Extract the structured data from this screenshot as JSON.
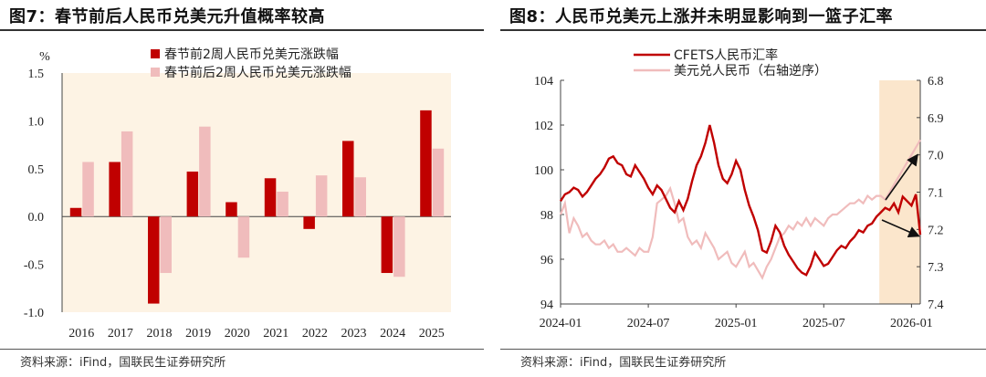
{
  "left": {
    "title": "图7：春节前后人民币兑美元升值概率较高",
    "source": "资料来源：iFind，国联民生证券研究所",
    "chart_data": {
      "type": "bar",
      "unit_label": "%",
      "categories": [
        "2016",
        "2017",
        "2018",
        "2019",
        "2020",
        "2021",
        "2022",
        "2023",
        "2024",
        "2025"
      ],
      "series": [
        {
          "name": "春节前2周人民币兑美元涨跌幅",
          "color": "#c00000",
          "values": [
            0.09,
            0.57,
            -0.91,
            0.47,
            0.15,
            0.4,
            -0.13,
            0.79,
            -0.59,
            1.11
          ]
        },
        {
          "name": "春节前后2周人民币兑美元涨跌幅",
          "color": "#f0bcbc",
          "values": [
            0.57,
            0.89,
            -0.59,
            0.94,
            -0.43,
            0.26,
            0.43,
            0.41,
            -0.63,
            0.71
          ]
        }
      ],
      "ylim": [
        -1.0,
        1.5
      ],
      "yticks": [
        "1.5",
        "1.0",
        "0.5",
        "0.0",
        "-0.5",
        "-1.0"
      ],
      "background": "#fdf3e4"
    }
  },
  "right": {
    "title": "图8：人民币兑美元上涨并未明显影响到一篮子汇率",
    "source": "资料来源：iFind，国联民生证券研究所",
    "chart_data": {
      "type": "line",
      "series": [
        {
          "name": "CFETS人民币汇率",
          "axis": "left",
          "color": "#c00000",
          "x": [
            0,
            0.3,
            0.6,
            0.9,
            1.2,
            1.5,
            1.8,
            2.1,
            2.4,
            2.7,
            3.0,
            3.3,
            3.6,
            3.9,
            4.2,
            4.5,
            4.8,
            5.1,
            5.4,
            5.7,
            6.0,
            6.3,
            6.6,
            6.9,
            7.2,
            7.5,
            7.8,
            8.1,
            8.4,
            8.7,
            9.0,
            9.3,
            9.6,
            9.9,
            10.2,
            10.5,
            10.8,
            11.1,
            11.4,
            11.7,
            12.0,
            12.3,
            12.6,
            12.9,
            13.2,
            13.5,
            13.8,
            14.1,
            14.4,
            14.7,
            15.0,
            15.3,
            15.6,
            15.9,
            16.2,
            16.5,
            16.8,
            17.1,
            17.4,
            17.7,
            18.0,
            18.3,
            18.6,
            18.9,
            19.2,
            19.5,
            19.8,
            20.1,
            20.4,
            20.7,
            21.0,
            21.3,
            21.6,
            21.9,
            22.2,
            22.5,
            22.8,
            23.1,
            23.4,
            23.7,
            24.0,
            24.3,
            24.6
          ],
          "y": [
            98.6,
            98.9,
            99.0,
            99.2,
            99.1,
            98.8,
            99.0,
            99.3,
            99.6,
            99.8,
            100.1,
            100.5,
            100.6,
            100.3,
            100.2,
            99.8,
            99.7,
            100.2,
            99.9,
            99.6,
            99.2,
            98.9,
            99.3,
            99.1,
            98.7,
            98.3,
            98.1,
            98.6,
            98.2,
            98.7,
            99.5,
            100.2,
            100.6,
            101.2,
            102.0,
            101.2,
            100.2,
            99.6,
            99.4,
            99.8,
            100.4,
            100.0,
            99.1,
            98.4,
            97.9,
            97.3,
            96.4,
            96.3,
            96.8,
            97.5,
            97.2,
            96.6,
            96.2,
            95.9,
            95.6,
            95.4,
            95.3,
            95.7,
            96.3,
            96.0,
            95.7,
            95.8,
            96.1,
            96.4,
            96.6,
            96.5,
            96.8,
            97.0,
            97.3,
            97.2,
            97.5,
            97.6,
            97.9,
            98.1,
            98.3,
            98.2,
            98.5,
            98.1,
            98.8,
            98.6,
            98.4,
            98.9,
            97.1
          ]
        },
        {
          "name": "美元兑人民币（右轴逆序）",
          "axis": "right",
          "color": "#f0bcbc",
          "x": [
            0,
            0.3,
            0.6,
            0.9,
            1.2,
            1.5,
            1.8,
            2.1,
            2.4,
            2.7,
            3.0,
            3.3,
            3.6,
            3.9,
            4.2,
            4.5,
            4.8,
            5.1,
            5.4,
            5.7,
            6.0,
            6.3,
            6.6,
            6.9,
            7.2,
            7.5,
            7.8,
            8.1,
            8.4,
            8.7,
            9.0,
            9.3,
            9.6,
            9.9,
            10.2,
            10.5,
            10.8,
            11.1,
            11.4,
            11.7,
            12.0,
            12.3,
            12.6,
            12.9,
            13.2,
            13.5,
            13.8,
            14.1,
            14.4,
            14.7,
            15.0,
            15.3,
            15.6,
            15.9,
            16.2,
            16.5,
            16.8,
            17.1,
            17.4,
            17.7,
            18.0,
            18.3,
            18.6,
            18.9,
            19.2,
            19.5,
            19.8,
            20.1,
            20.4,
            20.7,
            21.0,
            21.3,
            21.6,
            21.9,
            22.2,
            22.5,
            22.8,
            23.1,
            23.4,
            23.7,
            24.0,
            24.3,
            24.6
          ],
          "y": [
            7.16,
            7.13,
            7.21,
            7.17,
            7.19,
            7.22,
            7.21,
            7.23,
            7.24,
            7.24,
            7.23,
            7.25,
            7.24,
            7.26,
            7.26,
            7.25,
            7.26,
            7.27,
            7.25,
            7.26,
            7.26,
            7.22,
            7.13,
            7.12,
            7.11,
            7.09,
            7.13,
            7.18,
            7.17,
            7.22,
            7.24,
            7.23,
            7.25,
            7.21,
            7.23,
            7.25,
            7.28,
            7.27,
            7.26,
            7.29,
            7.3,
            7.28,
            7.26,
            7.3,
            7.29,
            7.31,
            7.33,
            7.3,
            7.28,
            7.25,
            7.22,
            7.21,
            7.19,
            7.2,
            7.18,
            7.19,
            7.17,
            7.19,
            7.17,
            7.18,
            7.19,
            7.17,
            7.16,
            7.16,
            7.15,
            7.14,
            7.13,
            7.13,
            7.12,
            7.13,
            7.11,
            7.12,
            7.11,
            7.11,
            7.12,
            7.1,
            7.08,
            7.06,
            7.04,
            7.02,
            7.0,
            6.98,
            6.96
          ]
        }
      ],
      "x_tick_labels": [
        "2024-01",
        "2024-07",
        "2025-01",
        "2025-07",
        "2026-01"
      ],
      "x_tick_positions": [
        0,
        6,
        12,
        18,
        24
      ],
      "xlim": [
        0,
        24.6
      ],
      "left_axis": {
        "ylim": [
          94,
          104
        ],
        "ticks": [
          "104",
          "102",
          "100",
          "98",
          "96",
          "94"
        ]
      },
      "right_axis": {
        "ylim": [
          6.8,
          7.4
        ],
        "inverted": true,
        "ticks": [
          "6.8",
          "6.9",
          "7.0",
          "7.1",
          "7.2",
          "7.3",
          "7.4"
        ]
      },
      "highlight": {
        "x_start": 21.8,
        "x_end": 24.6,
        "color": "#fbe6cc"
      }
    }
  }
}
